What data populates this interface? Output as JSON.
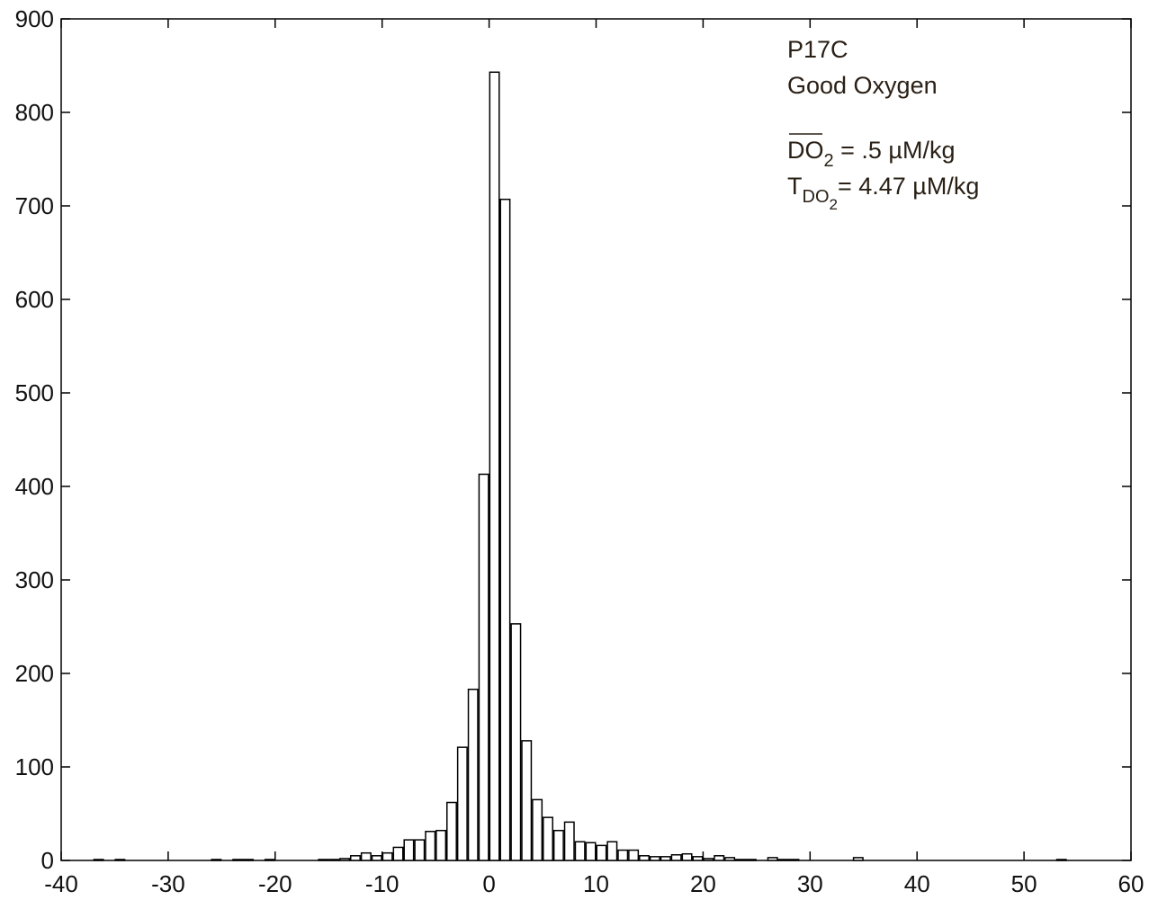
{
  "chart_data": {
    "type": "histogram",
    "bins": [
      -38,
      -37,
      -36,
      -35,
      -34,
      -33,
      -32,
      -31,
      -30,
      -29,
      -28,
      -27,
      -26,
      -25,
      -24,
      -23,
      -22,
      -21,
      -20,
      -19,
      -18,
      -17,
      -16,
      -15,
      -14,
      -13,
      -12,
      -11,
      -10,
      -9,
      -8,
      -7,
      -6,
      -5,
      -4,
      -3,
      -2,
      -1,
      0,
      1,
      2,
      3,
      4,
      5,
      6,
      7,
      8,
      9,
      10,
      11,
      12,
      13,
      14,
      15,
      16,
      17,
      18,
      19,
      20,
      21,
      22,
      23,
      24,
      25,
      26,
      27,
      28,
      29,
      30,
      31,
      32,
      33,
      34,
      35,
      36,
      37,
      38,
      39,
      40,
      41,
      42,
      43,
      44,
      45,
      46,
      47,
      48,
      49,
      50,
      51,
      52,
      53,
      54
    ],
    "values": [
      0,
      1,
      0,
      1,
      0,
      0,
      0,
      0,
      0,
      0,
      0,
      0,
      1,
      0,
      1,
      1,
      0,
      1,
      0,
      0,
      0,
      0,
      1,
      1,
      2,
      5,
      8,
      5,
      8,
      14,
      22,
      22,
      31,
      32,
      62,
      121,
      183,
      413,
      843,
      707,
      253,
      128,
      65,
      46,
      32,
      41,
      20,
      19,
      16,
      20,
      11,
      11,
      5,
      4,
      4,
      6,
      7,
      4,
      2,
      5,
      3,
      1,
      1,
      0,
      3,
      1,
      1,
      0,
      0,
      0,
      0,
      0,
      3,
      0,
      0,
      0,
      0,
      0,
      0,
      0,
      0,
      0,
      0,
      0,
      0,
      0,
      0,
      0,
      0,
      0,
      0,
      1
    ],
    "color": "#ffffff",
    "xlim": [
      -40,
      60
    ],
    "xticks": [
      -40,
      -30,
      -20,
      -10,
      0,
      10,
      20,
      30,
      40,
      50,
      60
    ],
    "ylim": [
      0,
      900
    ],
    "yticks": [
      0,
      100,
      200,
      300,
      400,
      500,
      600,
      700,
      800,
      900
    ],
    "grid": false,
    "annotations": [
      "P17C",
      "Good Oxygen"
    ],
    "mean_label": {
      "main": "DO",
      "sub": "2",
      "rest": " = .5 µM/kg"
    },
    "sigma_label": {
      "main": "T",
      "sub": "DO",
      "subsub": "2",
      "rest": "= 4.47 µM/kg"
    }
  }
}
